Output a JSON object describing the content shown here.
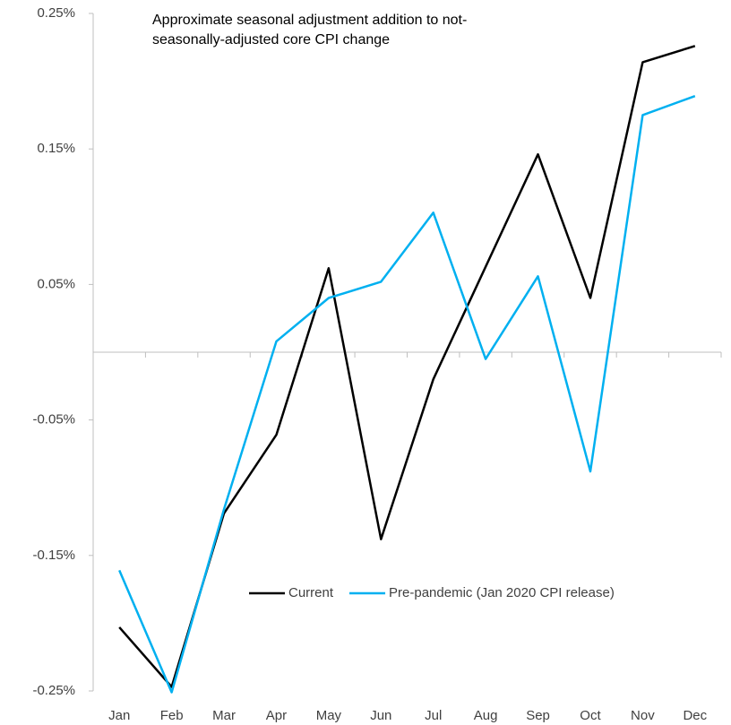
{
  "chart_data": {
    "type": "line",
    "title": "Approximate seasonal adjustment addition to not-seasonally-adjusted core CPI change",
    "categories": [
      "Jan",
      "Feb",
      "Mar",
      "Apr",
      "May",
      "Jun",
      "Jul",
      "Aug",
      "Sep",
      "Oct",
      "Nov",
      "Dec"
    ],
    "series": [
      {
        "name": "Current",
        "color": "#000000",
        "values": [
          -0.203,
          -0.247,
          -0.119,
          -0.061,
          0.062,
          -0.138,
          -0.02,
          0.063,
          0.146,
          0.04,
          0.214,
          0.226
        ]
      },
      {
        "name": "Pre-pandemic (Jan 2020 CPI release)",
        "color": "#00b0f0",
        "values": [
          -0.161,
          -0.251,
          -0.116,
          0.008,
          0.04,
          0.052,
          0.103,
          -0.005,
          0.056,
          -0.088,
          0.175,
          0.189
        ]
      }
    ],
    "ylim": [
      -0.25,
      0.25
    ],
    "yticks": [
      {
        "value": -0.25,
        "label": "-0.25%"
      },
      {
        "value": -0.15,
        "label": "-0.15%"
      },
      {
        "value": -0.05,
        "label": "-0.05%"
      },
      {
        "value": 0.05,
        "label": "0.05%"
      },
      {
        "value": 0.15,
        "label": "0.15%"
      },
      {
        "value": 0.25,
        "label": "0.25%"
      }
    ],
    "grid": false,
    "legend": "lower right"
  }
}
